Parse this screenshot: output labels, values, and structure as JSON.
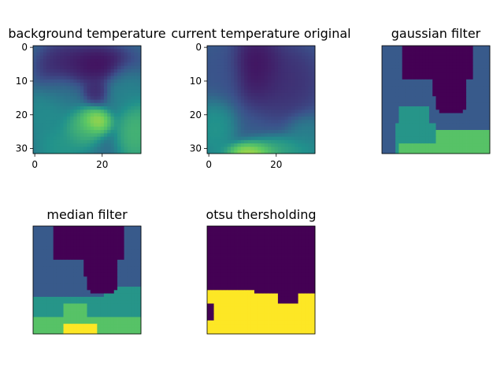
{
  "chart_data": [
    {
      "type": "heatmap",
      "title": "background temperature",
      "grid_size": [
        32,
        32
      ],
      "colormap": "viridis",
      "axes_visible": true,
      "xticks": [
        0,
        20
      ],
      "yticks": [
        0,
        10,
        20,
        30
      ],
      "description_levels": "mostly dark purple/teal field with a bright yellow-green hot spot near (x=18, y=22) and green at lower right",
      "blobs": [
        {
          "x": 18,
          "y": 5,
          "sx": 6,
          "sy": 3,
          "v": 0.0
        },
        {
          "x": 8,
          "y": 6,
          "sx": 4,
          "sy": 4,
          "v": 0.1
        },
        {
          "x": 18,
          "y": 13,
          "sx": 2,
          "sy": 2,
          "v": 0.1
        },
        {
          "x": 8,
          "y": 13,
          "sx": 3,
          "sy": 3,
          "v": 0.4
        },
        {
          "x": 27,
          "y": 12,
          "sx": 3,
          "sy": 4,
          "v": 0.45
        },
        {
          "x": 18,
          "y": 22,
          "sx": 2.5,
          "sy": 2,
          "v": 0.95
        },
        {
          "x": 14,
          "y": 24,
          "sx": 3,
          "sy": 3,
          "v": 0.7
        },
        {
          "x": 30,
          "y": 25,
          "sx": 3,
          "sy": 5,
          "v": 0.7
        },
        {
          "x": 4,
          "y": 20,
          "sx": 4,
          "sy": 4,
          "v": 0.5
        },
        {
          "x": 8,
          "y": 29,
          "sx": 4,
          "sy": 3,
          "v": 0.55
        }
      ],
      "base": 0.35
    },
    {
      "type": "heatmap",
      "title": "current temperature original",
      "grid_size": [
        32,
        32
      ],
      "colormap": "viridis",
      "axes_visible": true,
      "xticks": [
        0,
        20
      ],
      "yticks": [
        0,
        10,
        20,
        30
      ],
      "blobs": [
        {
          "x": 14,
          "y": 6,
          "sx": 4,
          "sy": 5,
          "v": 0.0
        },
        {
          "x": 22,
          "y": 10,
          "sx": 6,
          "sy": 6,
          "v": 0.12
        },
        {
          "x": 4,
          "y": 8,
          "sx": 4,
          "sy": 5,
          "v": 0.25
        },
        {
          "x": 2,
          "y": 24,
          "sx": 3,
          "sy": 5,
          "v": 0.55
        },
        {
          "x": 13,
          "y": 31,
          "sx": 4,
          "sy": 1.5,
          "v": 1.0
        },
        {
          "x": 22,
          "y": 30,
          "sx": 6,
          "sy": 2,
          "v": 0.6
        },
        {
          "x": 29,
          "y": 26,
          "sx": 3,
          "sy": 3,
          "v": 0.45
        }
      ],
      "base": 0.3
    },
    {
      "type": "heatmap",
      "title": "gaussian filter",
      "grid_size": [
        32,
        32
      ],
      "colormap": "viridis",
      "axes_visible": false,
      "levels": [
        0.0,
        0.28,
        0.52,
        0.72,
        1.0
      ]
    },
    {
      "type": "heatmap",
      "title": "median filter",
      "grid_size": [
        32,
        32
      ],
      "colormap": "viridis",
      "axes_visible": false,
      "levels": [
        0.0,
        0.28,
        0.52,
        0.72,
        1.0
      ]
    },
    {
      "type": "heatmap",
      "title": "otsu thersholding",
      "grid_size": [
        32,
        32
      ],
      "colormap": "viridis",
      "axes_visible": false,
      "levels": [
        0.0,
        1.0
      ]
    }
  ],
  "colors": {
    "viridis_stops": [
      "#440154",
      "#3b528b",
      "#21918c",
      "#5ec962",
      "#fde725"
    ]
  }
}
